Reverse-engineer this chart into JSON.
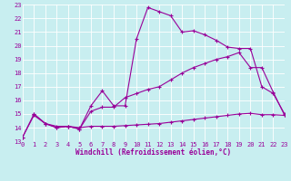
{
  "xlabel": "Windchill (Refroidissement éolien,°C)",
  "bg_color": "#c8eef0",
  "line_color": "#990099",
  "grid_color": "#ffffff",
  "xlim": [
    0,
    23
  ],
  "ylim": [
    13,
    23
  ],
  "xticks": [
    0,
    1,
    2,
    3,
    4,
    5,
    6,
    7,
    8,
    9,
    10,
    11,
    12,
    13,
    14,
    15,
    16,
    17,
    18,
    19,
    20,
    21,
    22,
    23
  ],
  "yticks": [
    13,
    14,
    15,
    16,
    17,
    18,
    19,
    20,
    21,
    22,
    23
  ],
  "line1_x": [
    0,
    1,
    2,
    3,
    4,
    5,
    6,
    7,
    8,
    9,
    10,
    11,
    12,
    13,
    14,
    15,
    16,
    17,
    18,
    19,
    20,
    21,
    22,
    23
  ],
  "line1_y": [
    13.3,
    15.0,
    14.3,
    14.0,
    14.1,
    13.9,
    15.6,
    16.7,
    15.6,
    15.6,
    20.5,
    22.8,
    22.5,
    22.2,
    21.0,
    21.1,
    20.8,
    20.4,
    19.9,
    19.8,
    19.8,
    17.0,
    16.5,
    15.0
  ],
  "line2_x": [
    1,
    2,
    3,
    4,
    5,
    6,
    7,
    8,
    9,
    10,
    11,
    12,
    13,
    14,
    15,
    16,
    17,
    18,
    19,
    20,
    21,
    22,
    23
  ],
  "line2_y": [
    15.0,
    14.3,
    14.0,
    14.1,
    13.9,
    15.2,
    15.5,
    15.5,
    16.2,
    16.5,
    16.8,
    17.0,
    17.5,
    18.0,
    18.4,
    18.7,
    19.0,
    19.2,
    19.5,
    18.4,
    18.4,
    16.6,
    14.9
  ],
  "line3_x": [
    0,
    1,
    2,
    3,
    4,
    5,
    6,
    7,
    8,
    9,
    10,
    11,
    12,
    13,
    14,
    15,
    16,
    17,
    18,
    19,
    20,
    21,
    22,
    23
  ],
  "line3_y": [
    13.3,
    14.9,
    14.3,
    14.1,
    14.1,
    14.0,
    14.1,
    14.1,
    14.1,
    14.15,
    14.2,
    14.25,
    14.3,
    14.4,
    14.5,
    14.6,
    14.7,
    14.8,
    14.9,
    15.0,
    15.05,
    14.95,
    14.95,
    14.9
  ],
  "marker_size": 2.5,
  "linewidth": 0.8,
  "tick_fontsize": 5,
  "xlabel_fontsize": 5.5
}
